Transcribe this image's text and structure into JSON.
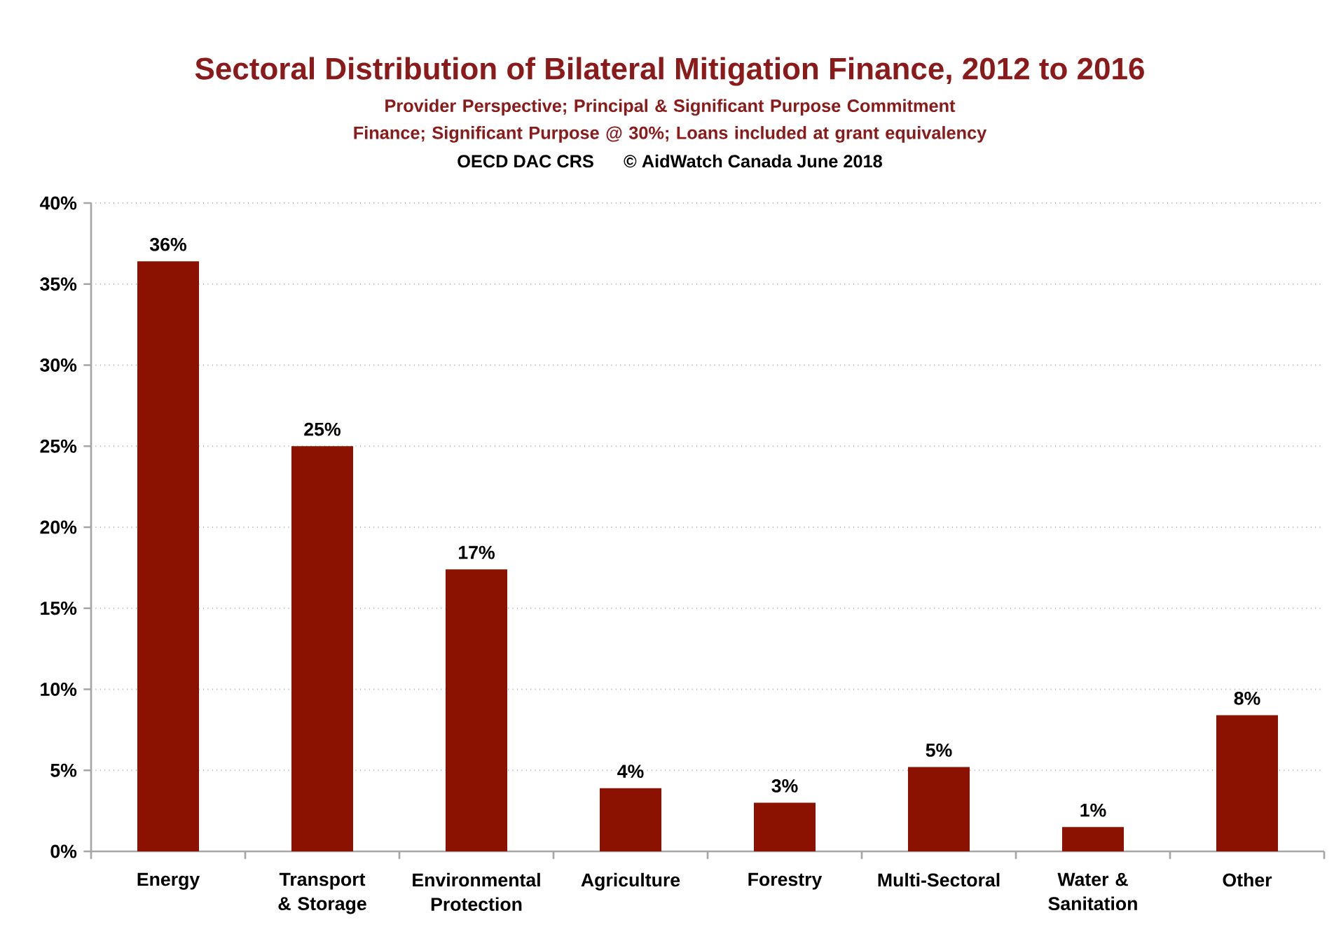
{
  "chart_data": {
    "type": "bar",
    "title": "Sectoral Distribution of Bilateral Mitigation Finance, 2012 to 2016",
    "subtitle": "Provider Perspective; Principal & Significant Purpose Commitment Finance; Significant Purpose @ 30%; Loans included at grant equivalency",
    "annotations": [
      "OECD DAC CRS      © AidWatch Canada June 2018"
    ],
    "categories": [
      "Energy",
      "Transport & Storage",
      "Environmental Protection",
      "Agriculture",
      "Forestry",
      "Multi-Sectoral",
      "Water & Sanitation",
      "Other"
    ],
    "values": [
      36.4,
      25.0,
      17.4,
      3.9,
      3.0,
      5.2,
      1.5,
      8.4
    ],
    "value_labels": [
      "36%",
      "25%",
      "17%",
      "4%",
      "3%",
      "5%",
      "1%",
      "8%"
    ],
    "color": "#8b1100",
    "ylim": [
      0,
      40
    ],
    "yticks": [
      {
        "value": 0,
        "label": "0%"
      },
      {
        "value": 5,
        "label": "5%"
      },
      {
        "value": 10,
        "label": "10%"
      },
      {
        "value": 15,
        "label": "15%"
      },
      {
        "value": 20,
        "label": "20%"
      },
      {
        "value": 25,
        "label": "25%"
      },
      {
        "value": 30,
        "label": "30%"
      },
      {
        "value": 35,
        "label": "35%"
      },
      {
        "value": 40,
        "label": "40%"
      }
    ],
    "grid": "y"
  }
}
